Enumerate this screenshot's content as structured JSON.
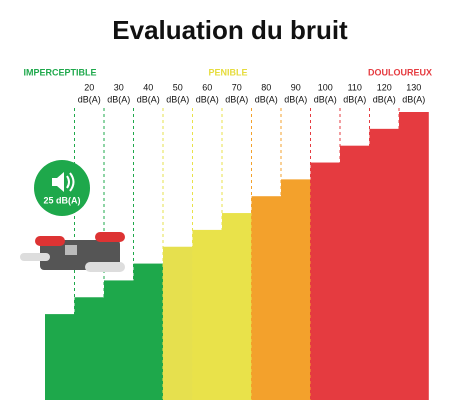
{
  "chart_data": {
    "type": "bar",
    "title": "Evaluation du bruit",
    "categories": [
      null,
      "20",
      "30",
      "40",
      "50",
      "60",
      "70",
      "80",
      "90",
      "100",
      "110",
      "120",
      "130"
    ],
    "unit": "dB(A)",
    "values": [
      10,
      20,
      30,
      40,
      50,
      60,
      70,
      80,
      90,
      100,
      110,
      120,
      130
    ],
    "colors": [
      "#1ea84b",
      "#1ea84b",
      "#1ea84b",
      "#1ea84b",
      "#e6e04e",
      "#e9e24a",
      "#e9e24a",
      "#f3a12c",
      "#f3a12c",
      "#e53b40",
      "#e53b40",
      "#e53b40",
      "#e53b40"
    ],
    "ylim": [
      -41,
      130
    ],
    "zones": [
      {
        "label": "IMPERCEPTIBLE",
        "color": "#1ea84b"
      },
      {
        "label": "PENIBLE",
        "color": "#e6dc3c"
      },
      {
        "label": "DOULOUREUX",
        "color": "#e53b40"
      }
    ],
    "annotation": "25 dB(A)"
  }
}
